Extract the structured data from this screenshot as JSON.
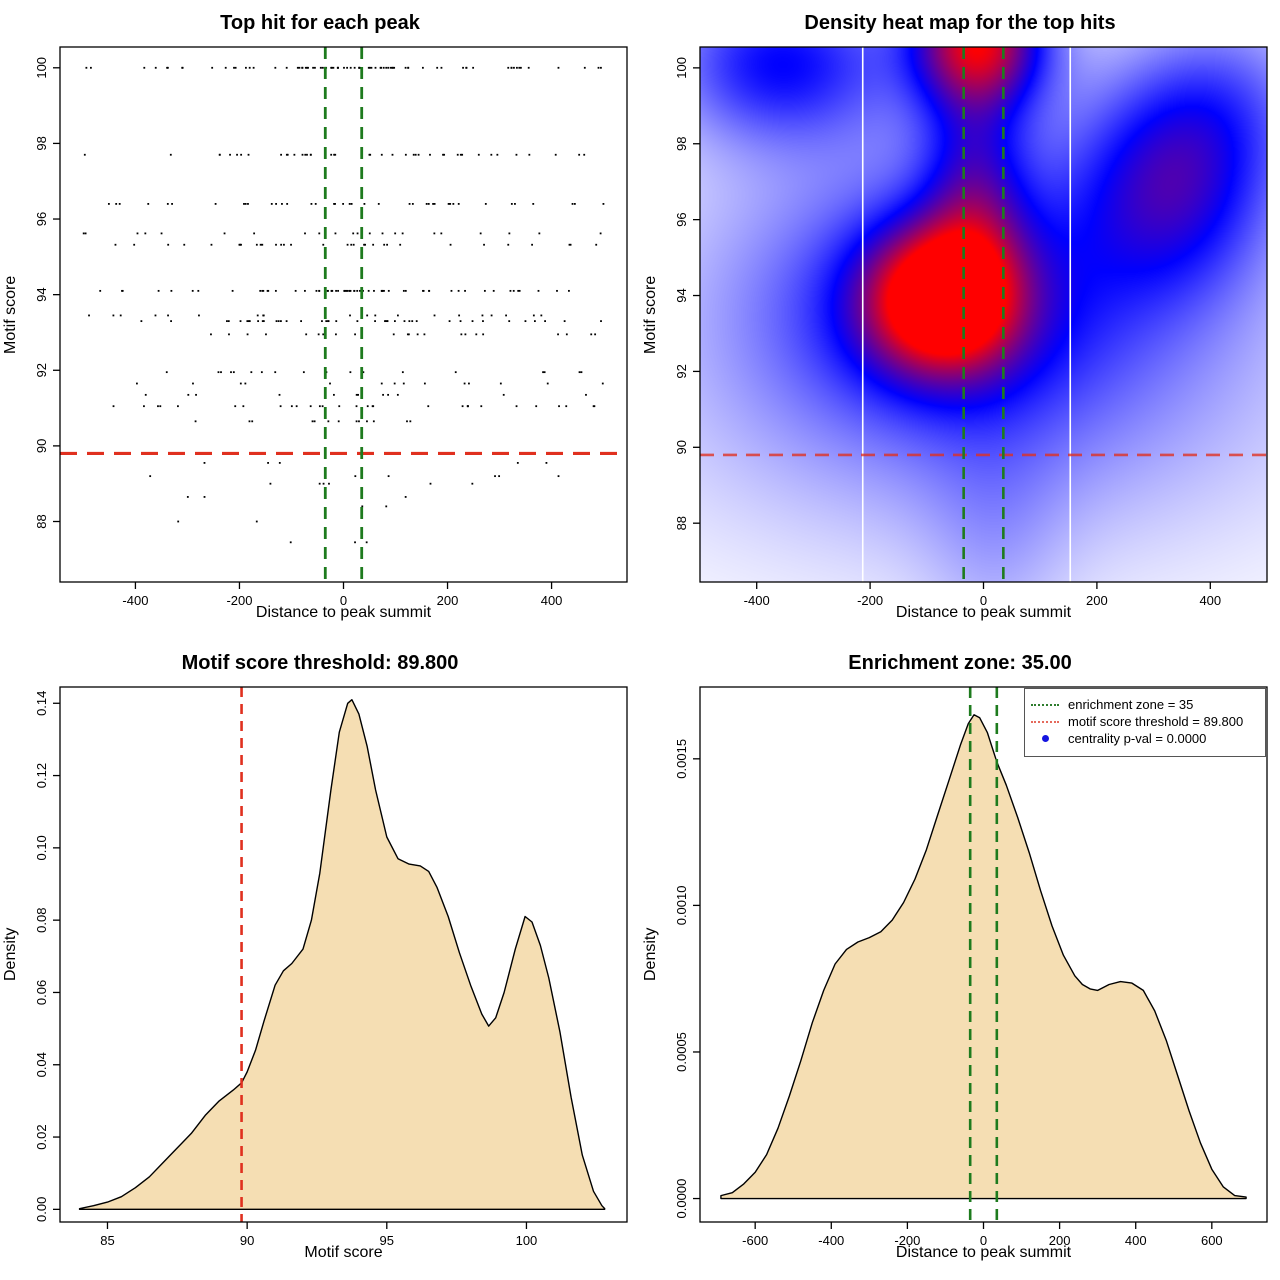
{
  "colors": {
    "red_line": "#E0301F",
    "green_line": "#1E7B1E",
    "legend_red": "#E56A5C",
    "legend_green": "#2E7D2E",
    "legend_blue": "#1414E0",
    "area_fill": "#F5DEB3",
    "curve_stroke": "#000000",
    "heat_white_line": "#FFFFFF",
    "box_stroke": "#000000"
  },
  "chart_data": [
    {
      "id": "top_hits_scatter",
      "type": "scatter",
      "title": "Top hit for each peak",
      "xlabel": "Distance to peak summit",
      "ylabel": "Motif score",
      "xlim": [
        -545,
        545
      ],
      "ylim": [
        86.4,
        100.55
      ],
      "xticks": {
        "values": [
          -400,
          -200,
          0,
          200,
          400
        ],
        "labels": [
          "-400",
          "-200",
          "0",
          "200",
          "400"
        ]
      },
      "yticks": {
        "values": [
          88,
          90,
          92,
          94,
          96,
          98,
          100
        ],
        "labels": [
          "88",
          "90",
          "92",
          "94",
          "96",
          "98",
          "100"
        ]
      },
      "grid": false,
      "point_color": "#000000",
      "seed": 7,
      "cluster": {
        "mean": -10,
        "sd": 140
      },
      "bands": [
        {
          "y": 100.0,
          "n": 78,
          "central": 0.55
        },
        {
          "y": 97.7,
          "n": 42,
          "central": 0.35
        },
        {
          "y": 96.4,
          "n": 40,
          "central": 0.35
        },
        {
          "y": 95.62,
          "n": 22,
          "central": 0.25
        },
        {
          "y": 95.32,
          "n": 32,
          "central": 0.3
        },
        {
          "y": 94.1,
          "n": 66,
          "central": 0.55
        },
        {
          "y": 93.45,
          "n": 20,
          "central": 0.3
        },
        {
          "y": 93.3,
          "n": 42,
          "central": 0.4
        },
        {
          "y": 92.95,
          "n": 24,
          "central": 0.3
        },
        {
          "y": 91.95,
          "n": 18,
          "central": 0.3
        },
        {
          "y": 91.65,
          "n": 14,
          "central": 0.25
        },
        {
          "y": 91.35,
          "n": 12,
          "central": 0.3
        },
        {
          "y": 91.05,
          "n": 30,
          "central": 0.3
        },
        {
          "y": 90.65,
          "n": 13,
          "central": 0.25
        },
        {
          "y": 89.55,
          "n": 5,
          "central": 0.3
        },
        {
          "y": 89.2,
          "n": 6,
          "central": 0.3
        },
        {
          "y": 89.0,
          "n": 6,
          "central": 0.3
        },
        {
          "y": 88.65,
          "n": 3,
          "central": 0.3
        },
        {
          "y": 88.4,
          "n": 2,
          "central": 0.3
        },
        {
          "y": 88.0,
          "n": 2,
          "central": 0.5
        },
        {
          "y": 87.45,
          "n": 3,
          "central": 0.5
        }
      ],
      "enrichment_zone_lines_x": [
        -35,
        35
      ],
      "motif_threshold_line_y": 89.8
    },
    {
      "id": "density_heatmap",
      "type": "heatmap",
      "title": "Density heat map for the top hits",
      "xlabel": "Distance to peak summit",
      "ylabel": "Motif score",
      "xlim": [
        -500,
        500
      ],
      "ylim": [
        86.45,
        100.55
      ],
      "xticks": {
        "values": [
          -400,
          -200,
          0,
          200,
          400
        ],
        "labels": [
          "-400",
          "-200",
          "0",
          "200",
          "400"
        ]
      },
      "yticks": {
        "values": [
          88,
          90,
          92,
          94,
          96,
          98,
          100
        ],
        "labels": [
          "88",
          "90",
          "92",
          "94",
          "96",
          "98",
          "100"
        ]
      },
      "colormap": [
        "#FFFFFF",
        "#0000FF",
        "#FF0000"
      ],
      "density_blobs": [
        {
          "x": -77,
          "y": 93.9,
          "sx": 90,
          "sy": 1.3,
          "w": 0.78
        },
        {
          "x": -70,
          "y": 93.6,
          "sx": 200,
          "sy": 2.0,
          "w": 0.25
        },
        {
          "x": -8,
          "y": 100.8,
          "sx": 85,
          "sy": 1.3,
          "w": 0.85
        },
        {
          "x": -15,
          "y": 96.8,
          "sx": 65,
          "sy": 2.2,
          "w": 0.35
        },
        {
          "x": 0,
          "y": 94.5,
          "sx": 360,
          "sy": 3.5,
          "w": 0.28
        },
        {
          "x": 330,
          "y": 96.9,
          "sx": 120,
          "sy": 2.0,
          "w": 0.42
        },
        {
          "x": -360,
          "y": 100.2,
          "sx": 140,
          "sy": 1.5,
          "w": 0.45
        },
        {
          "x": 430,
          "y": 99.2,
          "sx": 120,
          "sy": 1.8,
          "w": 0.22
        },
        {
          "x": 0,
          "y": 90.5,
          "sx": 420,
          "sy": 3.0,
          "w": 0.12
        },
        {
          "x": 20,
          "y": 87.5,
          "sx": 90,
          "sy": 2.5,
          "w": 0.1
        }
      ],
      "white_vlines_x": [
        -213,
        153
      ],
      "enrichment_zone_lines_x": [
        -35,
        35
      ],
      "motif_threshold_line_y": 89.8
    },
    {
      "id": "motif_score_density",
      "type": "area",
      "title": "Motif score threshold: 89.800",
      "xlabel": "Motif score",
      "ylabel": "Density",
      "xlim": [
        83.3,
        103.6
      ],
      "ylim": [
        -0.0035,
        0.1445
      ],
      "xticks": {
        "values": [
          85,
          90,
          95,
          100
        ],
        "labels": [
          "85",
          "90",
          "95",
          "100"
        ]
      },
      "yticks": {
        "values": [
          0.0,
          0.02,
          0.04,
          0.06,
          0.08,
          0.1,
          0.12,
          0.14
        ],
        "labels": [
          "0.00",
          "0.02",
          "0.04",
          "0.06",
          "0.08",
          "0.10",
          "0.12",
          "0.14"
        ]
      },
      "threshold_vline_x": 89.8,
      "points": [
        [
          84.0,
          0.0002
        ],
        [
          84.5,
          0.001
        ],
        [
          85.0,
          0.002
        ],
        [
          85.5,
          0.0035
        ],
        [
          86.0,
          0.006
        ],
        [
          86.5,
          0.009
        ],
        [
          87.0,
          0.013
        ],
        [
          87.5,
          0.017
        ],
        [
          88.0,
          0.021
        ],
        [
          88.5,
          0.026
        ],
        [
          89.0,
          0.03
        ],
        [
          89.5,
          0.033
        ],
        [
          89.8,
          0.035
        ],
        [
          90.0,
          0.038
        ],
        [
          90.3,
          0.044
        ],
        [
          90.6,
          0.052
        ],
        [
          91.0,
          0.062
        ],
        [
          91.3,
          0.066
        ],
        [
          91.6,
          0.068
        ],
        [
          92.0,
          0.072
        ],
        [
          92.3,
          0.08
        ],
        [
          92.6,
          0.093
        ],
        [
          93.0,
          0.116
        ],
        [
          93.3,
          0.132
        ],
        [
          93.6,
          0.14
        ],
        [
          93.75,
          0.141
        ],
        [
          94.0,
          0.137
        ],
        [
          94.3,
          0.128
        ],
        [
          94.6,
          0.116
        ],
        [
          95.0,
          0.103
        ],
        [
          95.4,
          0.097
        ],
        [
          95.8,
          0.0955
        ],
        [
          96.2,
          0.095
        ],
        [
          96.5,
          0.0935
        ],
        [
          96.8,
          0.089
        ],
        [
          97.2,
          0.081
        ],
        [
          97.6,
          0.071
        ],
        [
          98.0,
          0.062
        ],
        [
          98.4,
          0.054
        ],
        [
          98.65,
          0.0507
        ],
        [
          98.9,
          0.053
        ],
        [
          99.2,
          0.06
        ],
        [
          99.6,
          0.072
        ],
        [
          99.95,
          0.081
        ],
        [
          100.2,
          0.0795
        ],
        [
          100.5,
          0.073
        ],
        [
          100.8,
          0.064
        ],
        [
          101.2,
          0.049
        ],
        [
          101.6,
          0.031
        ],
        [
          102.0,
          0.015
        ],
        [
          102.4,
          0.005
        ],
        [
          102.7,
          0.001
        ],
        [
          102.8,
          0.0002
        ]
      ]
    },
    {
      "id": "distance_density",
      "type": "area",
      "title": "Enrichment zone: 35.00",
      "xlabel": "Distance to peak summit",
      "ylabel": "Density",
      "xlim": [
        -745,
        745
      ],
      "ylim": [
        -8e-05,
        0.001745
      ],
      "xticks": {
        "values": [
          -600,
          -400,
          -200,
          0,
          200,
          400,
          600
        ],
        "labels": [
          "-600",
          "-400",
          "-200",
          "0",
          "200",
          "400",
          "600"
        ]
      },
      "yticks": {
        "values": [
          0.0,
          0.0005,
          0.001,
          0.0015
        ],
        "labels": [
          "0.0000",
          "0.0005",
          "0.0010",
          "0.0015"
        ]
      },
      "enrichment_zone_lines_x": [
        -35,
        35
      ],
      "points": [
        [
          -690,
          1e-05
        ],
        [
          -660,
          2e-05
        ],
        [
          -630,
          5e-05
        ],
        [
          -600,
          9e-05
        ],
        [
          -570,
          0.00015
        ],
        [
          -540,
          0.00024
        ],
        [
          -510,
          0.00035
        ],
        [
          -480,
          0.00047
        ],
        [
          -450,
          0.0006
        ],
        [
          -420,
          0.00071
        ],
        [
          -390,
          0.0008
        ],
        [
          -360,
          0.00085
        ],
        [
          -330,
          0.000875
        ],
        [
          -300,
          0.00089
        ],
        [
          -270,
          0.00091
        ],
        [
          -240,
          0.00095
        ],
        [
          -210,
          0.00101
        ],
        [
          -180,
          0.00109
        ],
        [
          -150,
          0.00119
        ],
        [
          -120,
          0.00131
        ],
        [
          -90,
          0.00143
        ],
        [
          -60,
          0.00155
        ],
        [
          -40,
          0.00162
        ],
        [
          -25,
          0.00165
        ],
        [
          -10,
          0.00164
        ],
        [
          10,
          0.00159
        ],
        [
          35,
          0.00149
        ],
        [
          60,
          0.00141
        ],
        [
          90,
          0.0013
        ],
        [
          120,
          0.00118
        ],
        [
          150,
          0.00105
        ],
        [
          180,
          0.00093
        ],
        [
          210,
          0.00083
        ],
        [
          240,
          0.00076
        ],
        [
          260,
          0.00073
        ],
        [
          280,
          0.000715
        ],
        [
          300,
          0.00071
        ],
        [
          330,
          0.00073
        ],
        [
          360,
          0.00074
        ],
        [
          390,
          0.000735
        ],
        [
          420,
          0.00071
        ],
        [
          450,
          0.00064
        ],
        [
          480,
          0.00054
        ],
        [
          510,
          0.00042
        ],
        [
          540,
          0.0003
        ],
        [
          570,
          0.00019
        ],
        [
          600,
          0.0001
        ],
        [
          630,
          4e-05
        ],
        [
          660,
          1e-05
        ],
        [
          690,
          5e-06
        ]
      ],
      "legend": {
        "items": [
          {
            "label": "enrichment zone = 35",
            "symbol": "dotted-line",
            "color_key": "legend_green"
          },
          {
            "label": "motif score threshold = 89.800",
            "symbol": "dotted-line",
            "color_key": "legend_red"
          },
          {
            "label": "centrality p-val = 0.0000",
            "symbol": "dot",
            "color_key": "legend_blue"
          }
        ]
      }
    }
  ]
}
